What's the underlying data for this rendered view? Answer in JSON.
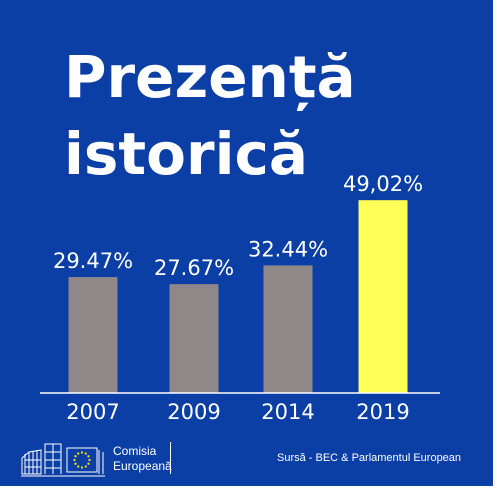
{
  "title": {
    "line1": "Prezență",
    "line2": "istorică"
  },
  "colors": {
    "background": "#0b3fa6",
    "bar_default": "#908888",
    "bar_highlight": "#ffff55",
    "text": "#ffffff",
    "axis": "#ffffff"
  },
  "chart_data": {
    "type": "bar",
    "categories": [
      "2007",
      "2009",
      "2014",
      "2019"
    ],
    "values": [
      29.47,
      27.67,
      32.44,
      49.02
    ],
    "value_labels": [
      "29.47%",
      "27.67%",
      "32.44%",
      "49,02%"
    ],
    "highlight_index": 3,
    "ylim": [
      0,
      60
    ],
    "grid": false
  },
  "footer": {
    "logo_line1": "Comisia",
    "logo_line2": "Europeană",
    "source": "Sursă - BEC & Parlamentul European"
  }
}
